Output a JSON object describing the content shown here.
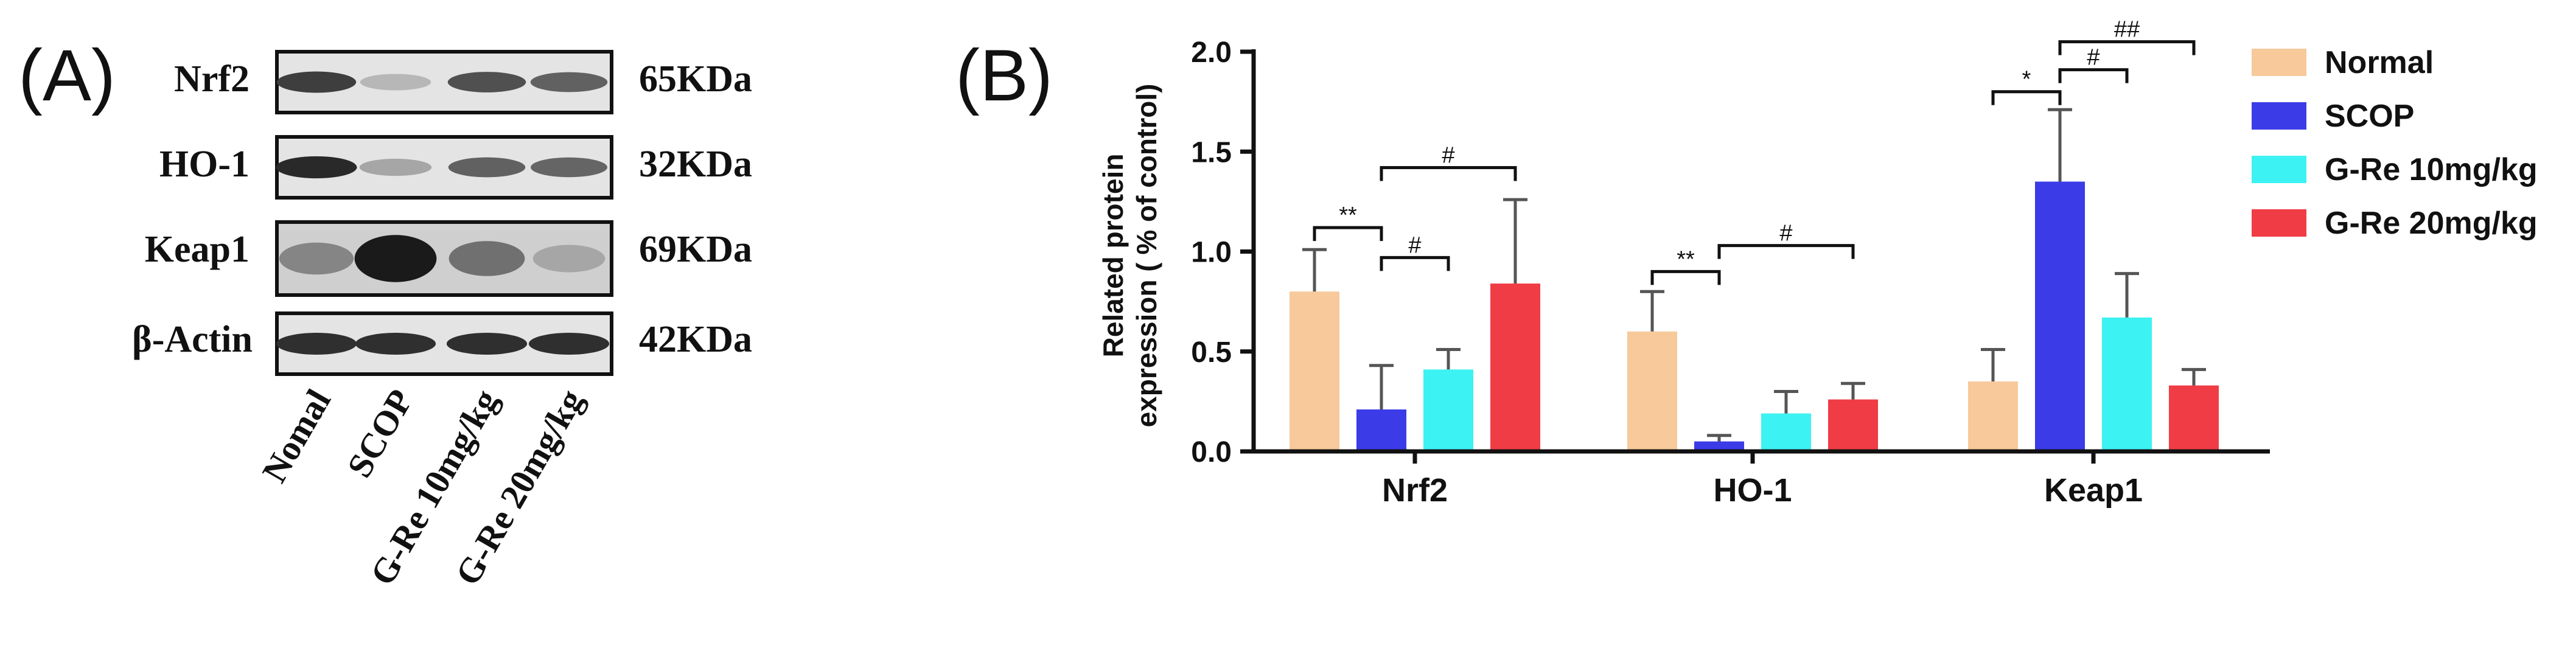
{
  "panels": {
    "a_label": "(A)",
    "b_label": "(B)"
  },
  "blot": {
    "proteins": [
      {
        "name": "Nrf2",
        "size": "65KDa",
        "intensities": [
          0.78,
          0.22,
          0.7,
          0.62
        ]
      },
      {
        "name": "HO-1",
        "size": "32KDa",
        "intensities": [
          0.88,
          0.3,
          0.62,
          0.6
        ]
      },
      {
        "name": "Keap1",
        "size": "69KDa",
        "intensities": [
          0.45,
          0.95,
          0.55,
          0.3
        ]
      },
      {
        "name": "β-Actin",
        "size": "42KDa",
        "intensities": [
          0.85,
          0.85,
          0.85,
          0.85
        ]
      }
    ],
    "lanes": [
      "Nomal",
      "SCOP",
      "G-Re 10mg/kg",
      "G-Re 20mg/kg"
    ]
  },
  "chart_data": {
    "type": "bar",
    "categories": [
      "Nrf2",
      "HO-1",
      "Keap1"
    ],
    "ylabel_line1": "Related protein",
    "ylabel_line2": "expression ( % of control)",
    "ylim": [
      0,
      2.0
    ],
    "yticks": [
      "0.0",
      "0.5",
      "1.0",
      "1.5",
      "2.0"
    ],
    "ytick_values": [
      0,
      0.5,
      1.0,
      1.5,
      2.0
    ],
    "legend_position": "top-right",
    "series": [
      {
        "name": "Normal",
        "color": "#F7C99B",
        "values": [
          0.8,
          0.6,
          0.35
        ],
        "errors": [
          0.21,
          0.2,
          0.16
        ]
      },
      {
        "name": "SCOP",
        "color": "#3B3BE8",
        "values": [
          0.21,
          0.05,
          1.35
        ],
        "errors": [
          0.22,
          0.03,
          0.36
        ]
      },
      {
        "name": "G-Re 10mg/kg",
        "color": "#3DF2F2",
        "values": [
          0.41,
          0.19,
          0.67
        ],
        "errors": [
          0.1,
          0.11,
          0.22
        ]
      },
      {
        "name": "G-Re 20mg/kg",
        "color": "#F03C44",
        "values": [
          0.84,
          0.26,
          0.33
        ],
        "errors": [
          0.42,
          0.08,
          0.08
        ]
      }
    ],
    "significance": [
      {
        "category": 0,
        "from": 0,
        "to": 1,
        "label": "**",
        "y": 1.12
      },
      {
        "category": 0,
        "from": 1,
        "to": 2,
        "label": "#",
        "y": 0.97
      },
      {
        "category": 0,
        "from": 1,
        "to": 3,
        "label": "#",
        "y": 1.42
      },
      {
        "category": 1,
        "from": 0,
        "to": 1,
        "label": "**",
        "y": 0.9
      },
      {
        "category": 1,
        "from": 1,
        "to": 3,
        "label": "#",
        "y": 1.03
      },
      {
        "category": 2,
        "from": 0,
        "to": 1,
        "label": "*",
        "y": 1.8
      },
      {
        "category": 2,
        "from": 1,
        "to": 2,
        "label": "#",
        "y": 1.91
      },
      {
        "category": 2,
        "from": 1,
        "to": 3,
        "label": "##",
        "y": 2.05
      }
    ]
  }
}
